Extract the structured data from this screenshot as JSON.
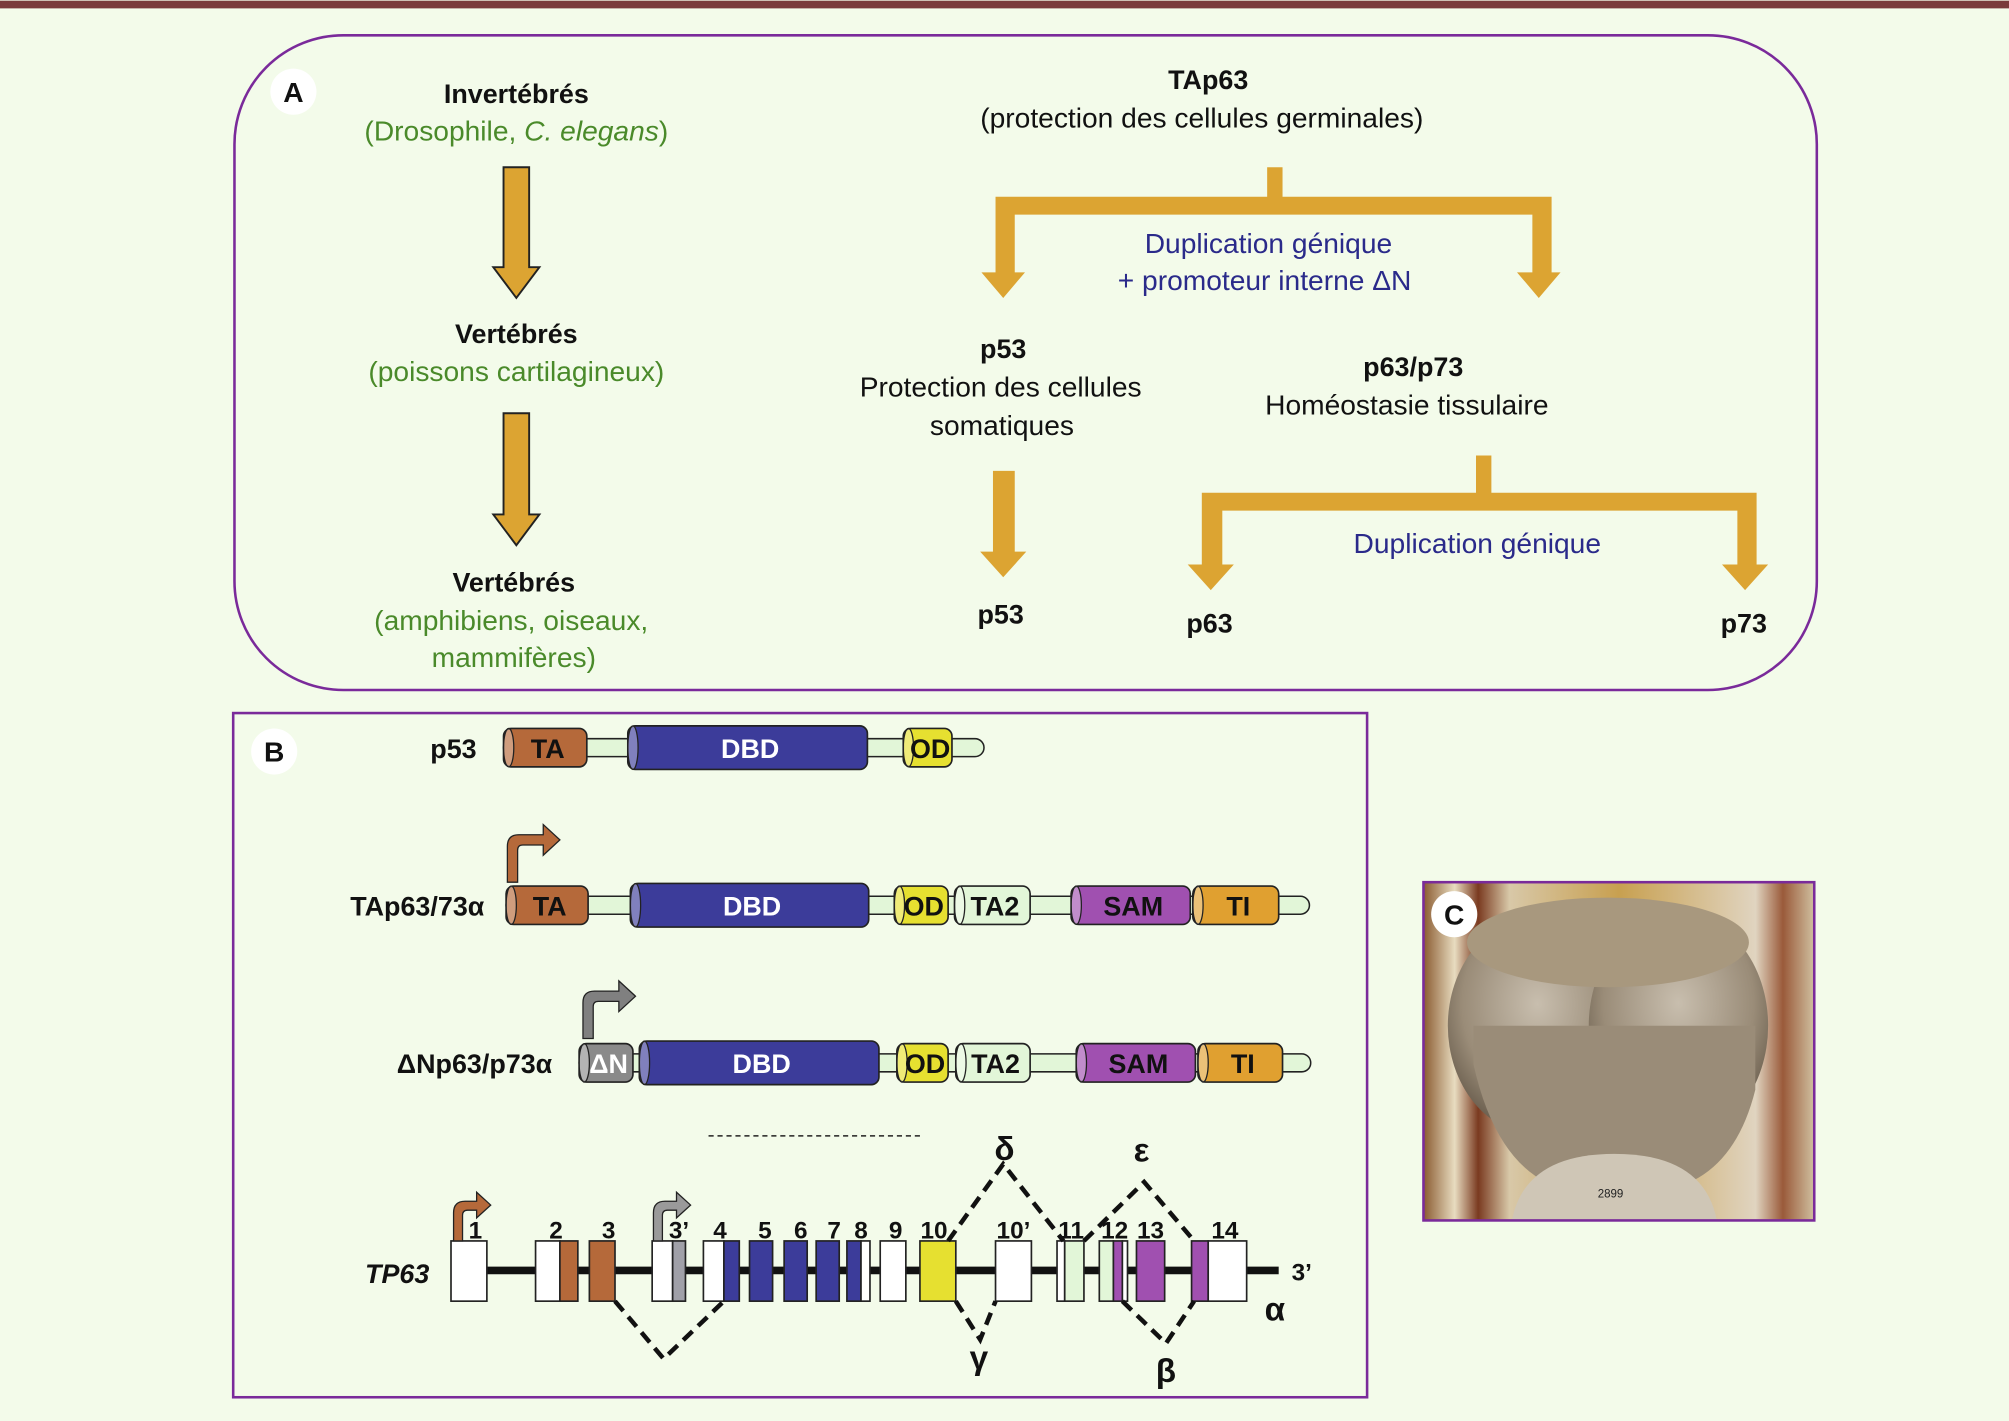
{
  "colors": {
    "panel_border": "#7a2a9a",
    "arrow": "#dca432",
    "top_bar": "#7a3b3b",
    "species": "#4a8a2a",
    "duplication": "#2a2a8a",
    "TA": "#b5693a",
    "DBD": "#3c3c9a",
    "OD": "#e6e030",
    "TA2": "#e2f6d8",
    "SAM": "#a050b0",
    "TI": "#e0a030",
    "deltaN": "#8a8a8a"
  },
  "panelA": {
    "label": "A",
    "invertebrates": "Invertébrés",
    "invertebrates_examples_1": "(Drosophile, ",
    "invertebrates_examples_2": "C. elegans",
    "invertebrates_examples_3": ")",
    "vertebrates1": "Vertébrés",
    "vertebrates1_examples": "(poissons cartilagineux)",
    "vertebrates2": "Vertébrés",
    "vertebrates2_examples_1": "(amphibiens, oiseaux,",
    "vertebrates2_examples_2": "mammifères)",
    "tap63": "TAp63",
    "tap63_role": "(protection des cellules germinales)",
    "dup1_line1": "Duplication génique",
    "dup1_line2": "+ promoteur interne ΔN",
    "p53": "p53",
    "p53_role_1": "Protection des cellules",
    "p53_role_2": "somatiques",
    "p63p73": "p63/p73",
    "p63p73_role": "Homéostasie tissulaire",
    "dup2": "Duplication génique",
    "p53_final": "p53",
    "p63_final": "p63",
    "p73_final": "p73"
  },
  "panelB": {
    "label": "B",
    "proteins": [
      {
        "name": "p53",
        "domains": [
          "TA",
          "DBD",
          "OD"
        ]
      },
      {
        "name": "TAp63/73α",
        "domains": [
          "TA",
          "DBD",
          "OD",
          "TA2",
          "SAM",
          "TI"
        ]
      },
      {
        "name": "ΔNp63/p73α",
        "domains": [
          "ΔN",
          "DBD",
          "OD",
          "TA2",
          "SAM",
          "TI"
        ]
      }
    ],
    "gene": {
      "name": "TP63",
      "exons": [
        "1",
        "2",
        "3",
        "3’",
        "4",
        "5",
        "6",
        "7",
        "8",
        "9",
        "10",
        "10’",
        "11",
        "12",
        "13",
        "14"
      ],
      "three_prime": "3’",
      "splice_variants": [
        "α",
        "β",
        "γ",
        "δ",
        "ε"
      ]
    }
  },
  "panelC": {
    "label": "C",
    "plinth_number": "2899"
  }
}
